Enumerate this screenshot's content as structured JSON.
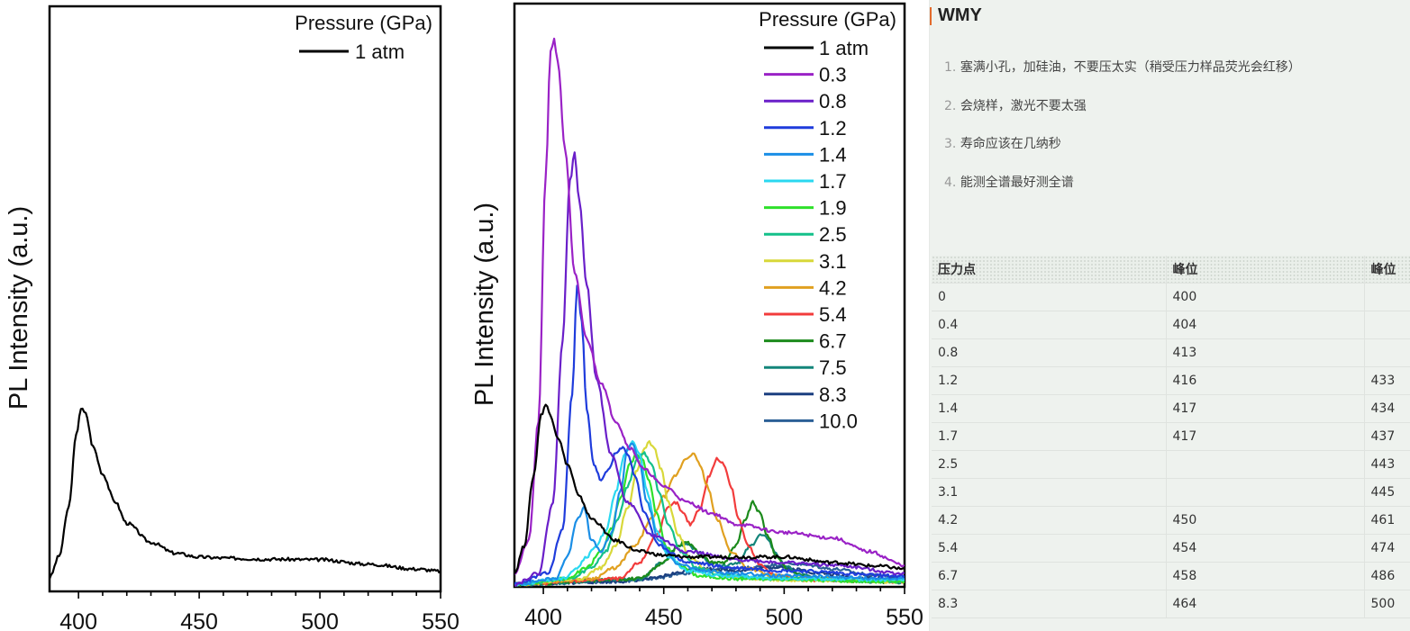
{
  "chart_data": [
    {
      "type": "line",
      "title": "",
      "xlabel": "",
      "ylabel": "PL Intensity (a.u.)",
      "xlim": [
        388,
        550
      ],
      "ylim": [
        0,
        1
      ],
      "x_ticks": [
        400,
        450,
        500,
        550
      ],
      "legend_title": "Pressure (GPa)",
      "legend_position": "top-right",
      "grid": false,
      "series": [
        {
          "name": "1 atm",
          "color": "#000000",
          "x": [
            388,
            392,
            396,
            399,
            401,
            403,
            406,
            410,
            415,
            420,
            430,
            440,
            450,
            460,
            480,
            500,
            520,
            540,
            550
          ],
          "y": [
            0.02,
            0.06,
            0.15,
            0.28,
            0.33,
            0.32,
            0.26,
            0.21,
            0.16,
            0.12,
            0.085,
            0.065,
            0.058,
            0.056,
            0.054,
            0.053,
            0.045,
            0.036,
            0.032
          ]
        }
      ]
    },
    {
      "type": "line",
      "title": "",
      "xlabel": "",
      "ylabel": "PL Intensity (a.u.)",
      "xlim": [
        388,
        550
      ],
      "ylim": [
        0,
        1
      ],
      "x_ticks": [
        400,
        450,
        500,
        550
      ],
      "legend_title": "Pressure (GPa)",
      "legend_position": "top-right",
      "grid": false,
      "series": [
        {
          "name": "1 atm",
          "color": "#000000",
          "x": [
            388,
            392,
            396,
            399,
            401,
            403,
            406,
            410,
            415,
            420,
            430,
            440,
            450,
            460,
            480,
            500,
            520,
            540,
            550
          ],
          "y": [
            0.02,
            0.07,
            0.2,
            0.31,
            0.33,
            0.31,
            0.27,
            0.22,
            0.16,
            0.12,
            0.08,
            0.06,
            0.053,
            0.05,
            0.05,
            0.05,
            0.04,
            0.033,
            0.028
          ]
        },
        {
          "name": "0.3",
          "color": "#9a22c6",
          "x": [
            388,
            394,
            398,
            401,
            403,
            404.5,
            406,
            409,
            413,
            418,
            424,
            430,
            436,
            442,
            450,
            460,
            470,
            480,
            500,
            520,
            535,
            550
          ],
          "y": [
            0.02,
            0.08,
            0.3,
            0.75,
            0.98,
            1.0,
            0.96,
            0.8,
            0.57,
            0.45,
            0.37,
            0.3,
            0.25,
            0.21,
            0.18,
            0.15,
            0.13,
            0.11,
            0.095,
            0.085,
            0.06,
            0.035
          ]
        },
        {
          "name": "0.8",
          "color": "#6a1fc9",
          "x": [
            388,
            398,
            404,
            408,
            411,
            413,
            415,
            418,
            422,
            428,
            435,
            445,
            460,
            480,
            500,
            520,
            550
          ],
          "y": [
            0.0,
            0.02,
            0.15,
            0.45,
            0.74,
            0.79,
            0.7,
            0.55,
            0.38,
            0.24,
            0.15,
            0.09,
            0.06,
            0.045,
            0.04,
            0.035,
            0.02
          ]
        },
        {
          "name": "1.2",
          "color": "#1f3cdc",
          "x": [
            388,
            402,
            408,
            412,
            414,
            416,
            418,
            421,
            424,
            427,
            430,
            433,
            435,
            438,
            442,
            448,
            460,
            480,
            500,
            550
          ],
          "y": [
            0.0,
            0.02,
            0.1,
            0.35,
            0.55,
            0.48,
            0.32,
            0.22,
            0.19,
            0.21,
            0.24,
            0.25,
            0.24,
            0.2,
            0.13,
            0.07,
            0.04,
            0.03,
            0.025,
            0.015
          ]
        },
        {
          "name": "1.4",
          "color": "#1a8ee6",
          "x": [
            388,
            405,
            410,
            414,
            417,
            420,
            424,
            428,
            432,
            435,
            437,
            440,
            443,
            448,
            455,
            465,
            480,
            500,
            550
          ],
          "y": [
            0.0,
            0.01,
            0.05,
            0.12,
            0.14,
            0.08,
            0.06,
            0.09,
            0.17,
            0.25,
            0.26,
            0.22,
            0.15,
            0.08,
            0.04,
            0.025,
            0.02,
            0.015,
            0.01
          ]
        },
        {
          "name": "1.7",
          "color": "#2ad8f0",
          "x": [
            388,
            408,
            414,
            418,
            422,
            426,
            430,
            434,
            437,
            440,
            443,
            447,
            452,
            460,
            475,
            500,
            550
          ],
          "y": [
            0.0,
            0.01,
            0.03,
            0.05,
            0.07,
            0.1,
            0.17,
            0.24,
            0.26,
            0.24,
            0.17,
            0.1,
            0.05,
            0.025,
            0.015,
            0.01,
            0.008
          ]
        },
        {
          "name": "1.9",
          "color": "#2ee02a",
          "x": [
            388,
            410,
            418,
            424,
            428,
            432,
            436,
            439,
            441,
            444,
            447,
            451,
            456,
            465,
            480,
            550
          ],
          "y": [
            0.0,
            0.01,
            0.03,
            0.06,
            0.1,
            0.16,
            0.22,
            0.24,
            0.23,
            0.19,
            0.13,
            0.07,
            0.035,
            0.015,
            0.01,
            0.005
          ]
        },
        {
          "name": "2.5",
          "color": "#14c08a",
          "x": [
            388,
            412,
            420,
            426,
            431,
            435,
            439,
            442,
            445,
            448,
            452,
            457,
            464,
            475,
            500,
            550
          ],
          "y": [
            0.0,
            0.01,
            0.03,
            0.06,
            0.12,
            0.18,
            0.23,
            0.24,
            0.22,
            0.17,
            0.11,
            0.06,
            0.03,
            0.015,
            0.01,
            0.005
          ]
        },
        {
          "name": "3.1",
          "color": "#d8d83a",
          "x": [
            388,
            415,
            424,
            430,
            435,
            439,
            442,
            444,
            446,
            449,
            452,
            456,
            461,
            468,
            480,
            500,
            550
          ],
          "y": [
            0.0,
            0.01,
            0.03,
            0.07,
            0.14,
            0.21,
            0.25,
            0.26,
            0.25,
            0.21,
            0.15,
            0.09,
            0.05,
            0.025,
            0.012,
            0.008,
            0.005
          ]
        },
        {
          "name": "4.2",
          "color": "#e0a020",
          "x": [
            388,
            420,
            430,
            438,
            445,
            450,
            455,
            459,
            462,
            465,
            468,
            472,
            478,
            485,
            495,
            510,
            550
          ],
          "y": [
            0.0,
            0.01,
            0.03,
            0.07,
            0.12,
            0.16,
            0.2,
            0.23,
            0.24,
            0.22,
            0.18,
            0.12,
            0.06,
            0.03,
            0.015,
            0.01,
            0.005
          ]
        },
        {
          "name": "5.4",
          "color": "#f23c3c",
          "x": [
            388,
            432,
            440,
            447,
            452,
            455,
            458,
            461,
            465,
            469,
            472,
            475,
            478,
            481,
            485,
            490,
            497,
            510,
            550
          ],
          "y": [
            0.0,
            0.01,
            0.04,
            0.09,
            0.14,
            0.15,
            0.13,
            0.11,
            0.14,
            0.2,
            0.23,
            0.22,
            0.18,
            0.12,
            0.07,
            0.035,
            0.015,
            0.008,
            0.005
          ]
        },
        {
          "name": "6.7",
          "color": "#1b8a1b",
          "x": [
            388,
            440,
            450,
            456,
            459,
            462,
            466,
            470,
            475,
            480,
            484,
            487,
            490,
            493,
            497,
            502,
            510,
            530,
            550
          ],
          "y": [
            0.0,
            0.01,
            0.04,
            0.07,
            0.08,
            0.07,
            0.05,
            0.04,
            0.04,
            0.07,
            0.12,
            0.15,
            0.13,
            0.09,
            0.05,
            0.025,
            0.012,
            0.006,
            0.004
          ]
        },
        {
          "name": "7.5",
          "color": "#13857a",
          "x": [
            388,
            440,
            450,
            456,
            460,
            464,
            469,
            475,
            481,
            486,
            490,
            493,
            496,
            500,
            506,
            515,
            535,
            550
          ],
          "y": [
            0.0,
            0.01,
            0.04,
            0.07,
            0.075,
            0.06,
            0.04,
            0.035,
            0.04,
            0.07,
            0.09,
            0.085,
            0.06,
            0.035,
            0.018,
            0.01,
            0.005,
            0.004
          ]
        },
        {
          "name": "8.3",
          "color": "#1b3f80",
          "x": [
            388,
            430,
            445,
            455,
            462,
            470,
            478,
            485,
            492,
            498,
            505,
            515,
            530,
            550
          ],
          "y": [
            0.0,
            0.005,
            0.01,
            0.02,
            0.03,
            0.028,
            0.025,
            0.026,
            0.03,
            0.032,
            0.027,
            0.02,
            0.012,
            0.008
          ]
        },
        {
          "name": "10.0",
          "color": "#2b5f96",
          "x": [
            388,
            430,
            445,
            458,
            466,
            475,
            485,
            495,
            502,
            510,
            520,
            535,
            550
          ],
          "y": [
            0.0,
            0.005,
            0.01,
            0.02,
            0.025,
            0.028,
            0.03,
            0.035,
            0.038,
            0.035,
            0.028,
            0.018,
            0.01
          ]
        }
      ]
    }
  ],
  "note": {
    "title": "WMY",
    "items": [
      {
        "num": "1.",
        "text": "塞满小孔，加硅油，不要压太实（稍受压力样品荧光会红移）"
      },
      {
        "num": "2.",
        "text": "会烧样，激光不要太强"
      },
      {
        "num": "3.",
        "text": "寿命应该在几纳秒"
      },
      {
        "num": "4.",
        "text": "能测全谱最好测全谱"
      }
    ],
    "table": {
      "headers": [
        "压力点",
        "峰位",
        "峰位"
      ],
      "rows": [
        [
          "0",
          "400",
          ""
        ],
        [
          "0.4",
          "404",
          ""
        ],
        [
          "0.8",
          "413",
          ""
        ],
        [
          "1.2",
          "416",
          "433"
        ],
        [
          "1.4",
          "417",
          "434"
        ],
        [
          "1.7",
          "417",
          "437"
        ],
        [
          "2.5",
          "",
          "443"
        ],
        [
          "3.1",
          "",
          "445"
        ],
        [
          "4.2",
          "450",
          "461"
        ],
        [
          "5.4",
          "454",
          "474"
        ],
        [
          "6.7",
          "458",
          "486"
        ],
        [
          "8.3",
          "464",
          "500"
        ]
      ]
    }
  }
}
